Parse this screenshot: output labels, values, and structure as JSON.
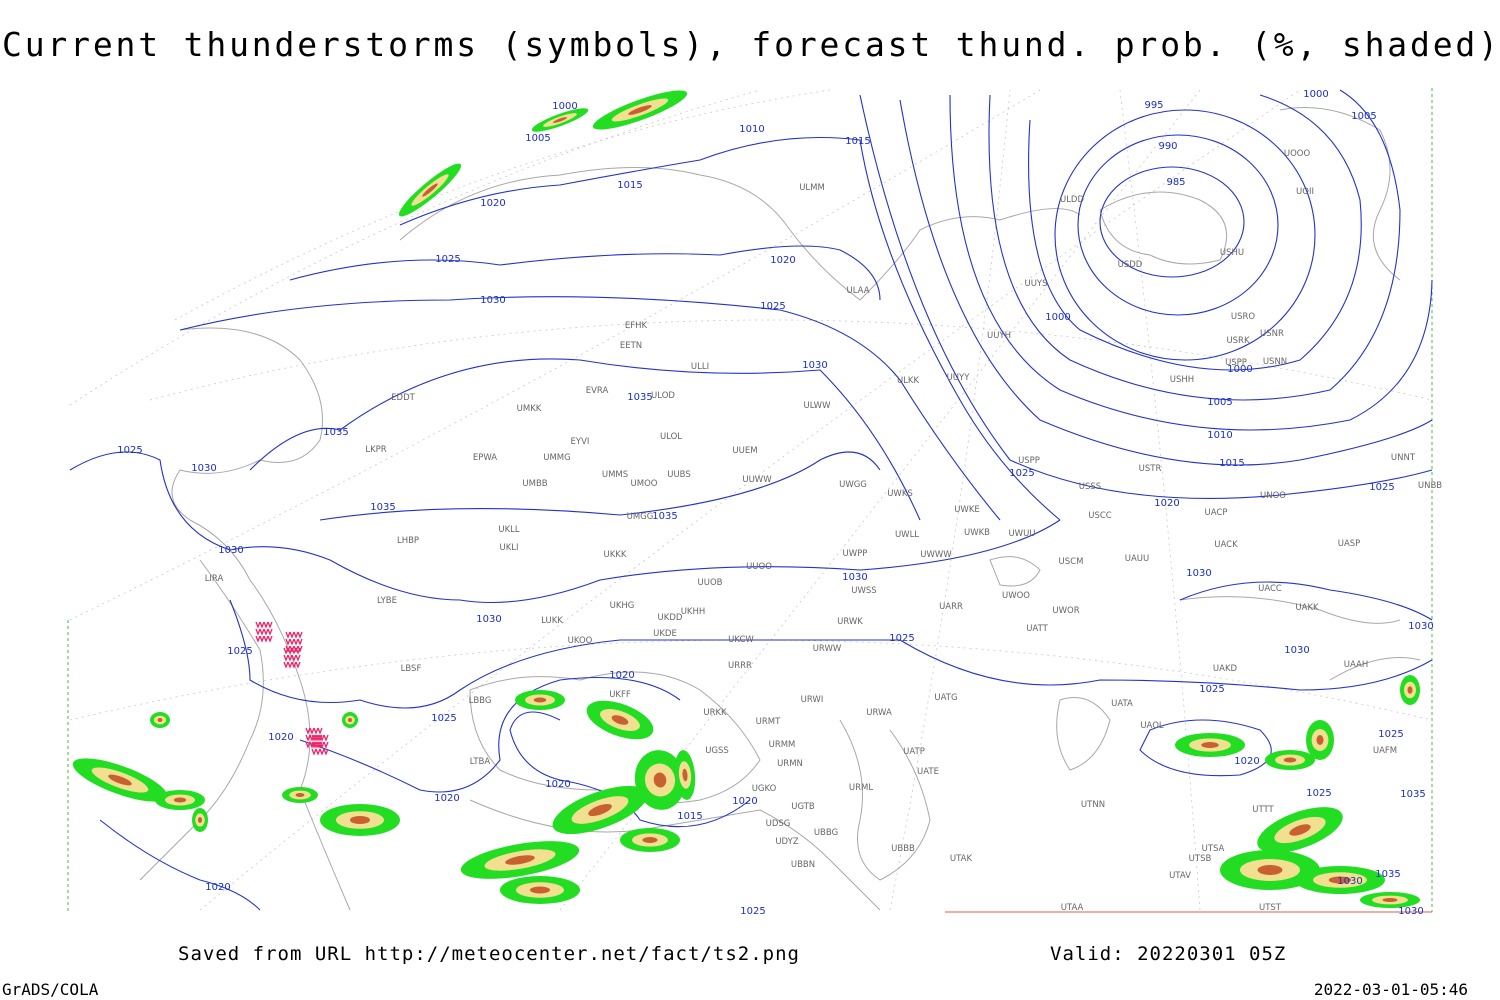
{
  "title": "Current thunderstorms (symbols), forecast thund. prob. (%, shaded)",
  "footer": {
    "saved": "Saved from URL http://meteocenter.net/fact/ts2.png",
    "valid": "Valid: 20220301 05Z",
    "software": "GrADS/COLA",
    "timestamp": "2022-03-01-05:46"
  },
  "isobar_labels": [
    1000,
    1005,
    1010,
    1015,
    1015,
    1020,
    1025,
    1020,
    1030,
    1025,
    1030,
    1035,
    1035,
    1025,
    1030,
    1035,
    1035,
    1030,
    1030,
    1030,
    1025,
    1025,
    1025,
    1020,
    1020,
    1020,
    1020,
    1020,
    1015,
    1020,
    1025,
    995,
    990,
    985,
    1000,
    1000,
    1005,
    1010,
    1015,
    1020,
    1025,
    1000,
    1005,
    1025,
    1030,
    1030,
    1030,
    1025,
    1020,
    1025,
    1025,
    1035,
    1030,
    1035,
    1030
  ],
  "stations": [
    "ULMM",
    "ULDD",
    "USDD",
    "USHU",
    "UOOO",
    "UOII",
    "ULAA",
    "UUYS",
    "EFHK",
    "EETN",
    "ULLI",
    "UUYH",
    "USRO",
    "USRK",
    "USNR",
    "USPP",
    "USNN",
    "USHH",
    "ULKK",
    "UUYY",
    "EVRA",
    "ULOD",
    "EDDT",
    "ULWW",
    "UMKK",
    "ULOL",
    "EYVI",
    "LKPR",
    "UUEM",
    "EPWA",
    "UMMG",
    "UMMS",
    "UMOO",
    "UUBS",
    "UUWW",
    "UWGG",
    "UWKS",
    "USPP",
    "USTR",
    "USSS",
    "UNNT",
    "UNBB",
    "UNOO",
    "UMBB",
    "UWKE",
    "UACP",
    "USCC",
    "UMGG",
    "UKLL",
    "UWKB",
    "UWUU",
    "LHBP",
    "UKLI",
    "UWLL",
    "UACK",
    "UASP",
    "UKKK",
    "UWPP",
    "UWWW",
    "USCM",
    "UAUU",
    "UUOO",
    "LIRA",
    "UUOB",
    "UWSS",
    "UACC",
    "LYBE",
    "UKHG",
    "UKHH",
    "UKDD",
    "UARR",
    "UWOO",
    "UWOR",
    "UAKK",
    "LUKK",
    "URWK",
    "UKDE",
    "UATT",
    "UKOO",
    "UKCW",
    "URWW",
    "LBSF",
    "URRR",
    "UAKD",
    "UAAH",
    "LBBG",
    "UKFF",
    "URWI",
    "UATG",
    "UATA",
    "URKK",
    "URMT",
    "URWA",
    "UAOL",
    "UAFM",
    "UGSS",
    "URMM",
    "UATP",
    "LTBA",
    "URMN",
    "UATE",
    "UGKO",
    "URML",
    "UTNN",
    "UGTB",
    "UTTT",
    "UDSG",
    "UBBG",
    "UDYZ",
    "UBBB",
    "UTAK",
    "UTSA",
    "UTSB",
    "UBBN",
    "UTAV",
    "UTAA",
    "UTST"
  ]
}
